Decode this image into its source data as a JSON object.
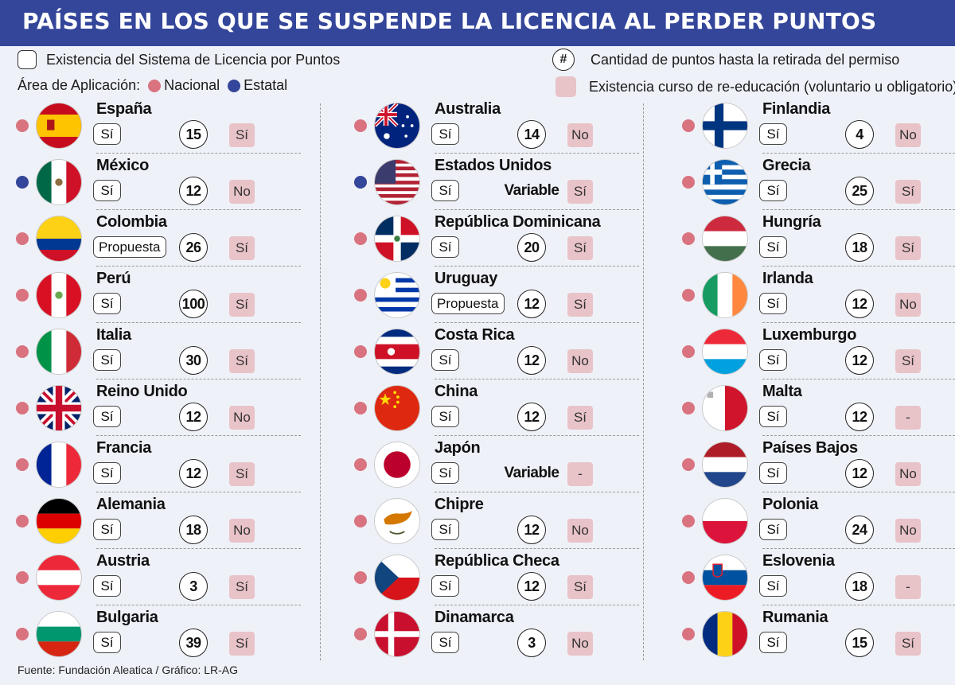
{
  "title": "PAÍSES EN LOS QUE SE SUSPENDE LA LICENCIA AL PERDER PUNTOS",
  "legend": {
    "system": "Existencia del Sistema de Licencia por Puntos",
    "area_label": "Área de Aplicación:",
    "nacional": "Nacional",
    "estatal": "Estatal",
    "hash_symbol": "#",
    "points": "Cantidad de puntos hasta la retirada del permiso",
    "course": "Existencia curso de re-educación (voluntario u obligatorio)"
  },
  "colors": {
    "header": "#34469a",
    "nacional": "#d9737f",
    "estatal": "#34469a",
    "course_fill": "#e8c3c8"
  },
  "source": "Fuente: Fundación Aleatica / Gráfico: LR-AG",
  "columns": [
    {
      "rows": [
        {
          "country": "España",
          "flag": "spain-flag",
          "area": "nacional",
          "system": "Sí",
          "points": "15",
          "course": "Sí"
        },
        {
          "country": "México",
          "flag": "mexico-flag",
          "area": "estatal",
          "system": "Sí",
          "points": "12",
          "course": "No"
        },
        {
          "country": "Colombia",
          "flag": "colombia-flag",
          "area": "nacional",
          "system": "Propuesta",
          "points": "26",
          "course": "Sí"
        },
        {
          "country": "Perú",
          "flag": "peru-flag",
          "area": "nacional",
          "system": "Sí",
          "points": "100",
          "course": "Sí"
        },
        {
          "country": "Italia",
          "flag": "italy-flag",
          "area": "nacional",
          "system": "Sí",
          "points": "30",
          "course": "Sí"
        },
        {
          "country": "Reino Unido",
          "flag": "uk-flag",
          "area": "nacional",
          "system": "Sí",
          "points": "12",
          "course": "No"
        },
        {
          "country": "Francia",
          "flag": "france-flag",
          "area": "nacional",
          "system": "Sí",
          "points": "12",
          "course": "Sí"
        },
        {
          "country": "Alemania",
          "flag": "germany-flag",
          "area": "nacional",
          "system": "Sí",
          "points": "18",
          "course": "No"
        },
        {
          "country": "Austria",
          "flag": "austria-flag",
          "area": "nacional",
          "system": "Sí",
          "points": "3",
          "course": "Sí"
        },
        {
          "country": "Bulgaria",
          "flag": "bulgaria-flag",
          "area": "nacional",
          "system": "Sí",
          "points": "39",
          "course": "Sí"
        }
      ]
    },
    {
      "rows": [
        {
          "country": "Australia",
          "flag": "australia-flag",
          "area": "nacional",
          "system": "Sí",
          "points": "14",
          "course": "No"
        },
        {
          "country": "Estados Unidos",
          "flag": "usa-flag",
          "area": "estatal",
          "system": "Sí",
          "points": "Variable",
          "course": "Sí"
        },
        {
          "country": "República Dominicana",
          "flag": "dominican-republic-flag",
          "area": "nacional",
          "system": "Sí",
          "points": "20",
          "course": "Sí"
        },
        {
          "country": "Uruguay",
          "flag": "uruguay-flag",
          "area": "nacional",
          "system": "Propuesta",
          "points": "12",
          "course": "Sí"
        },
        {
          "country": "Costa Rica",
          "flag": "costa-rica-flag",
          "area": "nacional",
          "system": "Sí",
          "points": "12",
          "course": "No"
        },
        {
          "country": "China",
          "flag": "china-flag",
          "area": "nacional",
          "system": "Sí",
          "points": "12",
          "course": "Sí"
        },
        {
          "country": "Japón",
          "flag": "japan-flag",
          "area": "nacional",
          "system": "Sí",
          "points": "Variable",
          "course": "-"
        },
        {
          "country": "Chipre",
          "flag": "cyprus-flag",
          "area": "nacional",
          "system": "Sí",
          "points": "12",
          "course": "No"
        },
        {
          "country": "República Checa",
          "flag": "czech-flag",
          "area": "nacional",
          "system": "Sí",
          "points": "12",
          "course": "Sí"
        },
        {
          "country": "Dinamarca",
          "flag": "denmark-flag",
          "area": "nacional",
          "system": "Sí",
          "points": "3",
          "course": "No"
        }
      ]
    },
    {
      "rows": [
        {
          "country": "Finlandia",
          "flag": "finland-flag",
          "area": "nacional",
          "system": "Sí",
          "points": "4",
          "course": "No"
        },
        {
          "country": "Grecia",
          "flag": "greece-flag",
          "area": "nacional",
          "system": "Sí",
          "points": "25",
          "course": "Sí"
        },
        {
          "country": "Hungría",
          "flag": "hungary-flag",
          "area": "nacional",
          "system": "Sí",
          "points": "18",
          "course": "Sí"
        },
        {
          "country": "Irlanda",
          "flag": "ireland-flag",
          "area": "nacional",
          "system": "Sí",
          "points": "12",
          "course": "No"
        },
        {
          "country": "Luxemburgo",
          "flag": "luxembourg-flag",
          "area": "nacional",
          "system": "Sí",
          "points": "12",
          "course": "Sí"
        },
        {
          "country": "Malta",
          "flag": "malta-flag",
          "area": "nacional",
          "system": "Sí",
          "points": "12",
          "course": "-"
        },
        {
          "country": "Países Bajos",
          "flag": "netherlands-flag",
          "area": "nacional",
          "system": "Sí",
          "points": "12",
          "course": "No"
        },
        {
          "country": "Polonia",
          "flag": "poland-flag",
          "area": "nacional",
          "system": "Sí",
          "points": "24",
          "course": "No"
        },
        {
          "country": "Eslovenia",
          "flag": "slovenia-flag",
          "area": "nacional",
          "system": "Sí",
          "points": "18",
          "course": "-"
        },
        {
          "country": "Rumania",
          "flag": "romania-flag",
          "area": "nacional",
          "system": "Sí",
          "points": "15",
          "course": "Sí"
        }
      ]
    }
  ]
}
